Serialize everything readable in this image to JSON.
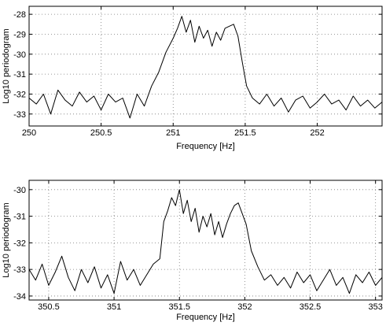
{
  "chart_data": [
    {
      "type": "line",
      "xlabel": "Frequency [Hz]",
      "ylabel": "Log10 periodogram",
      "xlim": [
        250.0,
        252.45
      ],
      "ylim": [
        -33.6,
        -27.6
      ],
      "xticks": [
        250,
        250.5,
        251,
        251.5,
        252
      ],
      "xtick_labels": [
        "250",
        "250.5",
        "251",
        "251.5",
        "252"
      ],
      "yticks": [
        -33,
        -32,
        -31,
        -30,
        -29,
        -28
      ],
      "ytick_labels": [
        "-33",
        "-32",
        "-31",
        "-30",
        "-29",
        "-28"
      ],
      "grid": true,
      "series": [
        {
          "x": [
            250.0,
            250.05,
            250.1,
            250.15,
            250.2,
            250.25,
            250.3,
            250.35,
            250.4,
            250.45,
            250.5,
            250.55,
            250.6,
            250.65,
            250.7,
            250.75,
            250.8,
            250.85,
            250.9,
            250.95,
            251.0,
            251.03,
            251.06,
            251.09,
            251.12,
            251.15,
            251.18,
            251.21,
            251.24,
            251.27,
            251.3,
            251.33,
            251.36,
            251.39,
            251.42,
            251.45,
            251.48,
            251.51,
            251.55,
            251.6,
            251.65,
            251.7,
            251.75,
            251.8,
            251.85,
            251.9,
            251.95,
            252.0,
            252.05,
            252.1,
            252.15,
            252.2,
            252.25,
            252.3,
            252.35,
            252.4,
            252.45
          ],
          "y": [
            -32.2,
            -32.5,
            -32.0,
            -33.0,
            -31.8,
            -32.3,
            -32.6,
            -31.9,
            -32.4,
            -32.1,
            -32.8,
            -32.0,
            -32.4,
            -32.2,
            -33.2,
            -32.0,
            -32.6,
            -31.6,
            -30.9,
            -29.9,
            -29.2,
            -28.7,
            -28.1,
            -28.9,
            -28.3,
            -29.4,
            -28.6,
            -29.2,
            -28.8,
            -29.6,
            -28.9,
            -29.3,
            -28.7,
            -28.6,
            -28.5,
            -29.1,
            -30.4,
            -31.6,
            -32.2,
            -32.5,
            -32.0,
            -32.6,
            -32.2,
            -32.9,
            -32.3,
            -32.1,
            -32.7,
            -32.4,
            -32.0,
            -32.5,
            -32.3,
            -32.8,
            -32.1,
            -32.6,
            -32.3,
            -32.7,
            -32.4
          ]
        }
      ]
    },
    {
      "type": "line",
      "xlabel": "Frequency [Hz]",
      "ylabel": "Log10 periodogram",
      "xlim": [
        350.35,
        353.05
      ],
      "ylim": [
        -34.15,
        -29.65
      ],
      "xticks": [
        350.5,
        351,
        351.5,
        352,
        352.5,
        353
      ],
      "xtick_labels": [
        "350.5",
        "351",
        "351.5",
        "352",
        "352.5",
        "353"
      ],
      "yticks": [
        -34,
        -33,
        -32,
        -31,
        -30
      ],
      "ytick_labels": [
        "-34",
        "-33",
        "-32",
        "-31",
        "-30"
      ],
      "grid": true,
      "series": [
        {
          "x": [
            350.35,
            350.4,
            350.45,
            350.5,
            350.55,
            350.6,
            350.65,
            350.7,
            350.75,
            350.8,
            350.85,
            350.9,
            350.95,
            351.0,
            351.05,
            351.1,
            351.15,
            351.2,
            351.25,
            351.3,
            351.35,
            351.38,
            351.41,
            351.44,
            351.47,
            351.5,
            351.53,
            351.56,
            351.59,
            351.62,
            351.65,
            351.68,
            351.71,
            351.74,
            351.77,
            351.8,
            351.83,
            351.86,
            351.89,
            351.92,
            351.95,
            351.98,
            352.01,
            352.05,
            352.1,
            352.15,
            352.2,
            352.25,
            352.3,
            352.35,
            352.4,
            352.45,
            352.5,
            352.55,
            352.6,
            352.65,
            352.7,
            352.75,
            352.8,
            352.85,
            352.9,
            352.95,
            353.0,
            353.05
          ],
          "y": [
            -33.0,
            -33.4,
            -32.8,
            -33.6,
            -33.1,
            -32.5,
            -33.3,
            -33.8,
            -33.0,
            -33.5,
            -32.9,
            -33.7,
            -33.2,
            -33.9,
            -32.7,
            -33.4,
            -33.0,
            -33.6,
            -33.2,
            -32.8,
            -32.6,
            -31.2,
            -30.8,
            -30.3,
            -30.6,
            -30.0,
            -30.9,
            -30.4,
            -31.2,
            -30.7,
            -31.6,
            -31.0,
            -31.4,
            -30.9,
            -31.7,
            -31.2,
            -31.8,
            -31.3,
            -30.9,
            -30.6,
            -30.5,
            -30.9,
            -31.3,
            -32.3,
            -32.9,
            -33.4,
            -33.2,
            -33.6,
            -33.3,
            -33.7,
            -33.1,
            -33.5,
            -33.2,
            -33.8,
            -33.4,
            -33.0,
            -33.6,
            -33.3,
            -33.9,
            -33.2,
            -33.5,
            -33.1,
            -33.6,
            -33.3
          ]
        }
      ]
    }
  ]
}
